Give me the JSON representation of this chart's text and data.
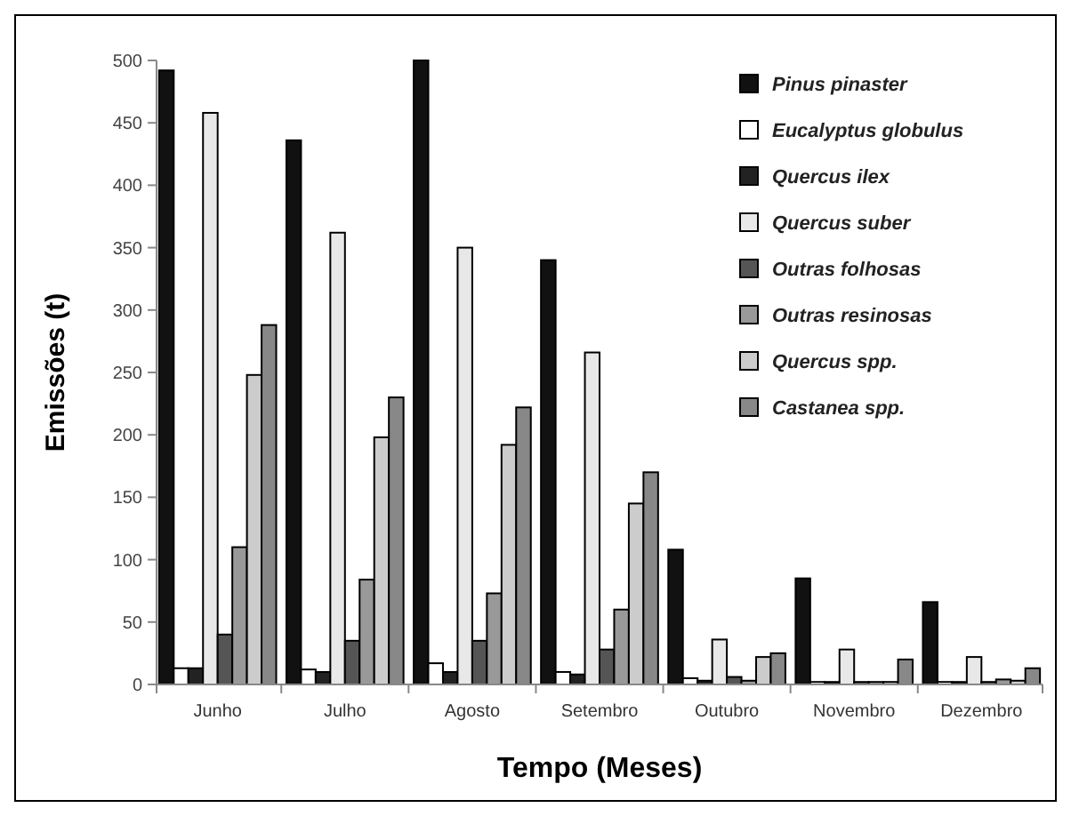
{
  "chart_data": {
    "type": "bar",
    "xlabel": "Tempo (Meses)",
    "ylabel": "Emissões (t)",
    "categories": [
      "Junho",
      "Julho",
      "Agosto",
      "Setembro",
      "Outubro",
      "Novembro",
      "Dezembro"
    ],
    "ylim": [
      0,
      500
    ],
    "yticks": [
      0,
      50,
      100,
      150,
      200,
      250,
      300,
      350,
      400,
      450,
      500
    ],
    "grid": false,
    "legend": "top right",
    "series": [
      {
        "name": "Pinus pinaster",
        "color": "#111111",
        "values": [
          492,
          436,
          500,
          340,
          108,
          85,
          66
        ]
      },
      {
        "name": "Eucalyptus globulus",
        "color": "#ffffff",
        "values": [
          13,
          12,
          17,
          10,
          5,
          2,
          2
        ]
      },
      {
        "name": "Quercus ilex",
        "color": "#222222",
        "values": [
          13,
          10,
          10,
          8,
          3,
          2,
          2
        ]
      },
      {
        "name": "Quercus suber",
        "color": "#e8e8e8",
        "values": [
          458,
          362,
          350,
          266,
          36,
          28,
          22
        ]
      },
      {
        "name": "Outras folhosas",
        "color": "#555555",
        "values": [
          40,
          35,
          35,
          28,
          6,
          2,
          2
        ]
      },
      {
        "name": "Outras resinosas",
        "color": "#999999",
        "values": [
          110,
          84,
          73,
          60,
          3,
          2,
          4
        ]
      },
      {
        "name": "Quercus spp.",
        "color": "#cccccc",
        "values": [
          248,
          198,
          192,
          145,
          22,
          2,
          3
        ]
      },
      {
        "name": "Castanea spp.",
        "color": "#888888",
        "values": [
          288,
          230,
          222,
          170,
          25,
          20,
          13
        ]
      }
    ]
  }
}
